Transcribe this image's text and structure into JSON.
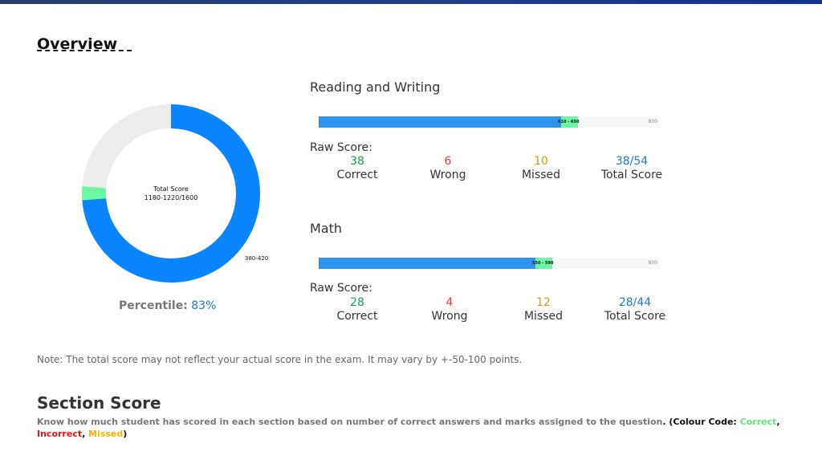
{
  "overview": {
    "title": "Overview"
  },
  "total": {
    "label": "Total Score",
    "value": "1180-1220/1600",
    "range_label": "380-420",
    "score_fraction": 0.7375,
    "band_fraction": 0.025
  },
  "percentile": {
    "label": "Percentile:",
    "value": "83%"
  },
  "sections": [
    {
      "title": "Reading and Writing",
      "band_label": "610 - 650",
      "max_label": "800",
      "score_fraction": 0.7125,
      "band_fraction": 0.05,
      "raw_label": "Raw Score:",
      "correct": "38",
      "correct_label": "Correct",
      "wrong": "6",
      "wrong_label": "Wrong",
      "missed": "10",
      "missed_label": "Missed",
      "total": "38/54",
      "total_label": "Total Score"
    },
    {
      "title": "Math",
      "band_label": "550 - 590",
      "max_label": "800",
      "score_fraction": 0.6375,
      "band_fraction": 0.05,
      "raw_label": "Raw Score:",
      "correct": "28",
      "correct_label": "Correct",
      "wrong": "4",
      "wrong_label": "Wrong",
      "missed": "12",
      "missed_label": "Missed",
      "total": "28/44",
      "total_label": "Total Score"
    }
  ],
  "note": "Note: The total score may not reflect your actual score in the exam. It may vary by +-50-100 points.",
  "section_score": {
    "title": "Section Score",
    "description": "Know how much student has scored in each section based on number of correct answers and marks assigned to the question",
    "colour_code_prefix": ". (Colour Code: ",
    "correct": "Correct",
    "incorrect": "Incorrect",
    "missed": "Missed",
    "sep": ", ",
    "suffix": ")"
  },
  "colors": {
    "score_fill": "#2e93f0",
    "band": "#6cf7a4",
    "donut_score": "#0a84ff",
    "donut_rest": "#ececec",
    "correct": "#1a9e4f",
    "wrong": "#e53935",
    "missed": "#c9a010",
    "total": "#1f78c8"
  }
}
